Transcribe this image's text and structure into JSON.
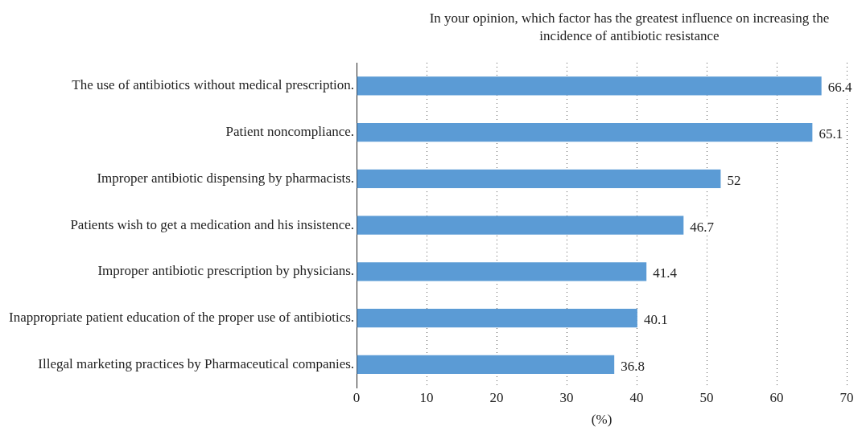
{
  "chart_data": {
    "type": "bar",
    "orientation": "horizontal",
    "title": "In your opinion, which factor has the greatest influence on increasing the incidence of antibiotic resistance",
    "xlabel": "(%)",
    "categories": [
      "The use of antibiotics without medical prescription.",
      "Patient noncompliance.",
      "Improper antibiotic dispensing by pharmacists.",
      "Patients wish to get a medication and his insistence.",
      "Improper antibiotic prescription by physicians.",
      "Inappropriate patient education of the proper use of antibiotics.",
      "Illegal marketing practices by Pharmaceutical companies."
    ],
    "values": [
      66.4,
      65.1,
      52,
      46.7,
      41.4,
      40.1,
      36.8
    ],
    "color": "#5b9bd5",
    "xlim": [
      0,
      70
    ],
    "xticks": [
      0,
      10,
      20,
      30,
      40,
      50,
      60,
      70
    ],
    "grid": "x",
    "data_labels": true,
    "legend": false
  }
}
